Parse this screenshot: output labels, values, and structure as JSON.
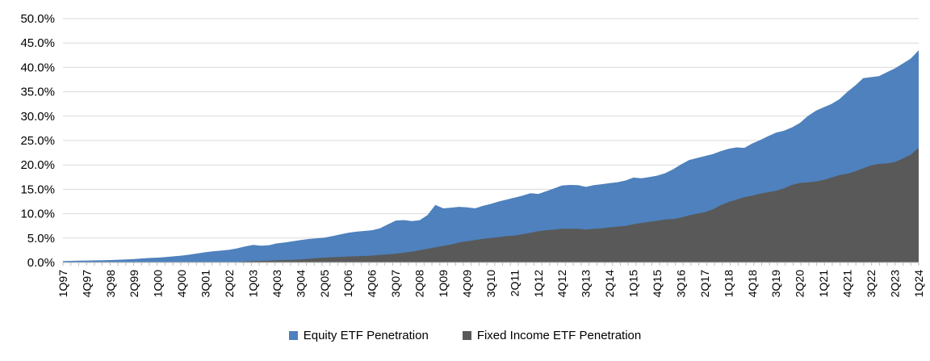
{
  "chart_data": {
    "type": "area",
    "title": "",
    "xlabel": "",
    "ylabel": "",
    "ylim": [
      0,
      50
    ],
    "y_tick_step": 5,
    "grid": "horizontal",
    "legend_position": "bottom",
    "y_tick_labels": [
      "0.0%",
      "5.0%",
      "10.0%",
      "15.0%",
      "20.0%",
      "25.0%",
      "30.0%",
      "35.0%",
      "40.0%",
      "45.0%",
      "50.0%"
    ],
    "x_tick_labels": [
      "1Q97",
      "4Q97",
      "3Q98",
      "2Q99",
      "1Q00",
      "4Q00",
      "3Q01",
      "2Q02",
      "1Q03",
      "4Q03",
      "3Q04",
      "2Q05",
      "1Q06",
      "4Q06",
      "3Q07",
      "2Q08",
      "1Q09",
      "4Q09",
      "3Q10",
      "2Q11",
      "1Q12",
      "4Q12",
      "3Q13",
      "2Q14",
      "1Q15",
      "4Q15",
      "3Q16",
      "2Q17",
      "1Q18",
      "4Q18",
      "3Q19",
      "2Q20",
      "1Q21",
      "4Q21",
      "3Q22",
      "2Q23",
      "1Q24"
    ],
    "x_label_every_n_quarters": 3,
    "n_points": 109,
    "series": [
      {
        "name": "Equity ETF Penetration",
        "color": "#4E81BD",
        "values": [
          0.3,
          0.33,
          0.36,
          0.4,
          0.43,
          0.46,
          0.5,
          0.56,
          0.63,
          0.72,
          0.82,
          0.92,
          1.0,
          1.12,
          1.26,
          1.4,
          1.6,
          1.85,
          2.1,
          2.3,
          2.45,
          2.6,
          2.9,
          3.3,
          3.6,
          3.45,
          3.55,
          3.9,
          4.1,
          4.35,
          4.6,
          4.8,
          4.95,
          5.1,
          5.4,
          5.75,
          6.1,
          6.3,
          6.45,
          6.6,
          7.0,
          7.8,
          8.6,
          8.7,
          8.5,
          8.65,
          9.7,
          11.8,
          11.1,
          11.25,
          11.4,
          11.3,
          11.1,
          11.6,
          12.0,
          12.5,
          12.9,
          13.3,
          13.7,
          14.2,
          14.05,
          14.6,
          15.2,
          15.8,
          15.9,
          15.85,
          15.5,
          15.85,
          16.05,
          16.25,
          16.45,
          16.8,
          17.4,
          17.25,
          17.5,
          17.8,
          18.3,
          19.1,
          20.1,
          21.0,
          21.4,
          21.8,
          22.2,
          22.8,
          23.3,
          23.6,
          23.5,
          24.4,
          25.1,
          25.9,
          26.6,
          27.0,
          27.7,
          28.6,
          30.0,
          31.1,
          31.8,
          32.5,
          33.5,
          35.0,
          36.3,
          37.8,
          38.0,
          38.2,
          39.0,
          39.8,
          40.8,
          41.8,
          43.5
        ]
      },
      {
        "name": "Fixed Income ETF Penetration",
        "color": "#595959",
        "values": [
          0,
          0,
          0,
          0,
          0,
          0,
          0,
          0,
          0,
          0,
          0,
          0,
          0,
          0,
          0,
          0,
          0,
          0,
          0,
          0,
          0.0,
          0.05,
          0.1,
          0.2,
          0.28,
          0.33,
          0.38,
          0.45,
          0.5,
          0.55,
          0.62,
          0.75,
          0.9,
          1.0,
          1.08,
          1.15,
          1.22,
          1.28,
          1.33,
          1.4,
          1.55,
          1.65,
          1.8,
          2.0,
          2.2,
          2.5,
          2.8,
          3.1,
          3.4,
          3.7,
          4.1,
          4.35,
          4.6,
          4.85,
          5.0,
          5.2,
          5.4,
          5.5,
          5.8,
          6.1,
          6.4,
          6.6,
          6.75,
          6.9,
          6.9,
          6.9,
          6.75,
          6.9,
          7.0,
          7.2,
          7.35,
          7.5,
          7.85,
          8.1,
          8.35,
          8.55,
          8.8,
          8.9,
          9.2,
          9.65,
          10.0,
          10.3,
          10.9,
          11.7,
          12.4,
          12.9,
          13.4,
          13.7,
          14.1,
          14.4,
          14.7,
          15.2,
          15.9,
          16.3,
          16.4,
          16.6,
          16.9,
          17.4,
          17.9,
          18.2,
          18.7,
          19.3,
          19.9,
          20.2,
          20.3,
          20.6,
          21.3,
          22.1,
          23.5
        ]
      }
    ],
    "colors": {
      "gridline": "#D9D9D9",
      "axis_line": "#BFBFBF",
      "tick": "#BFBFBF",
      "label_text": "#000000"
    }
  }
}
